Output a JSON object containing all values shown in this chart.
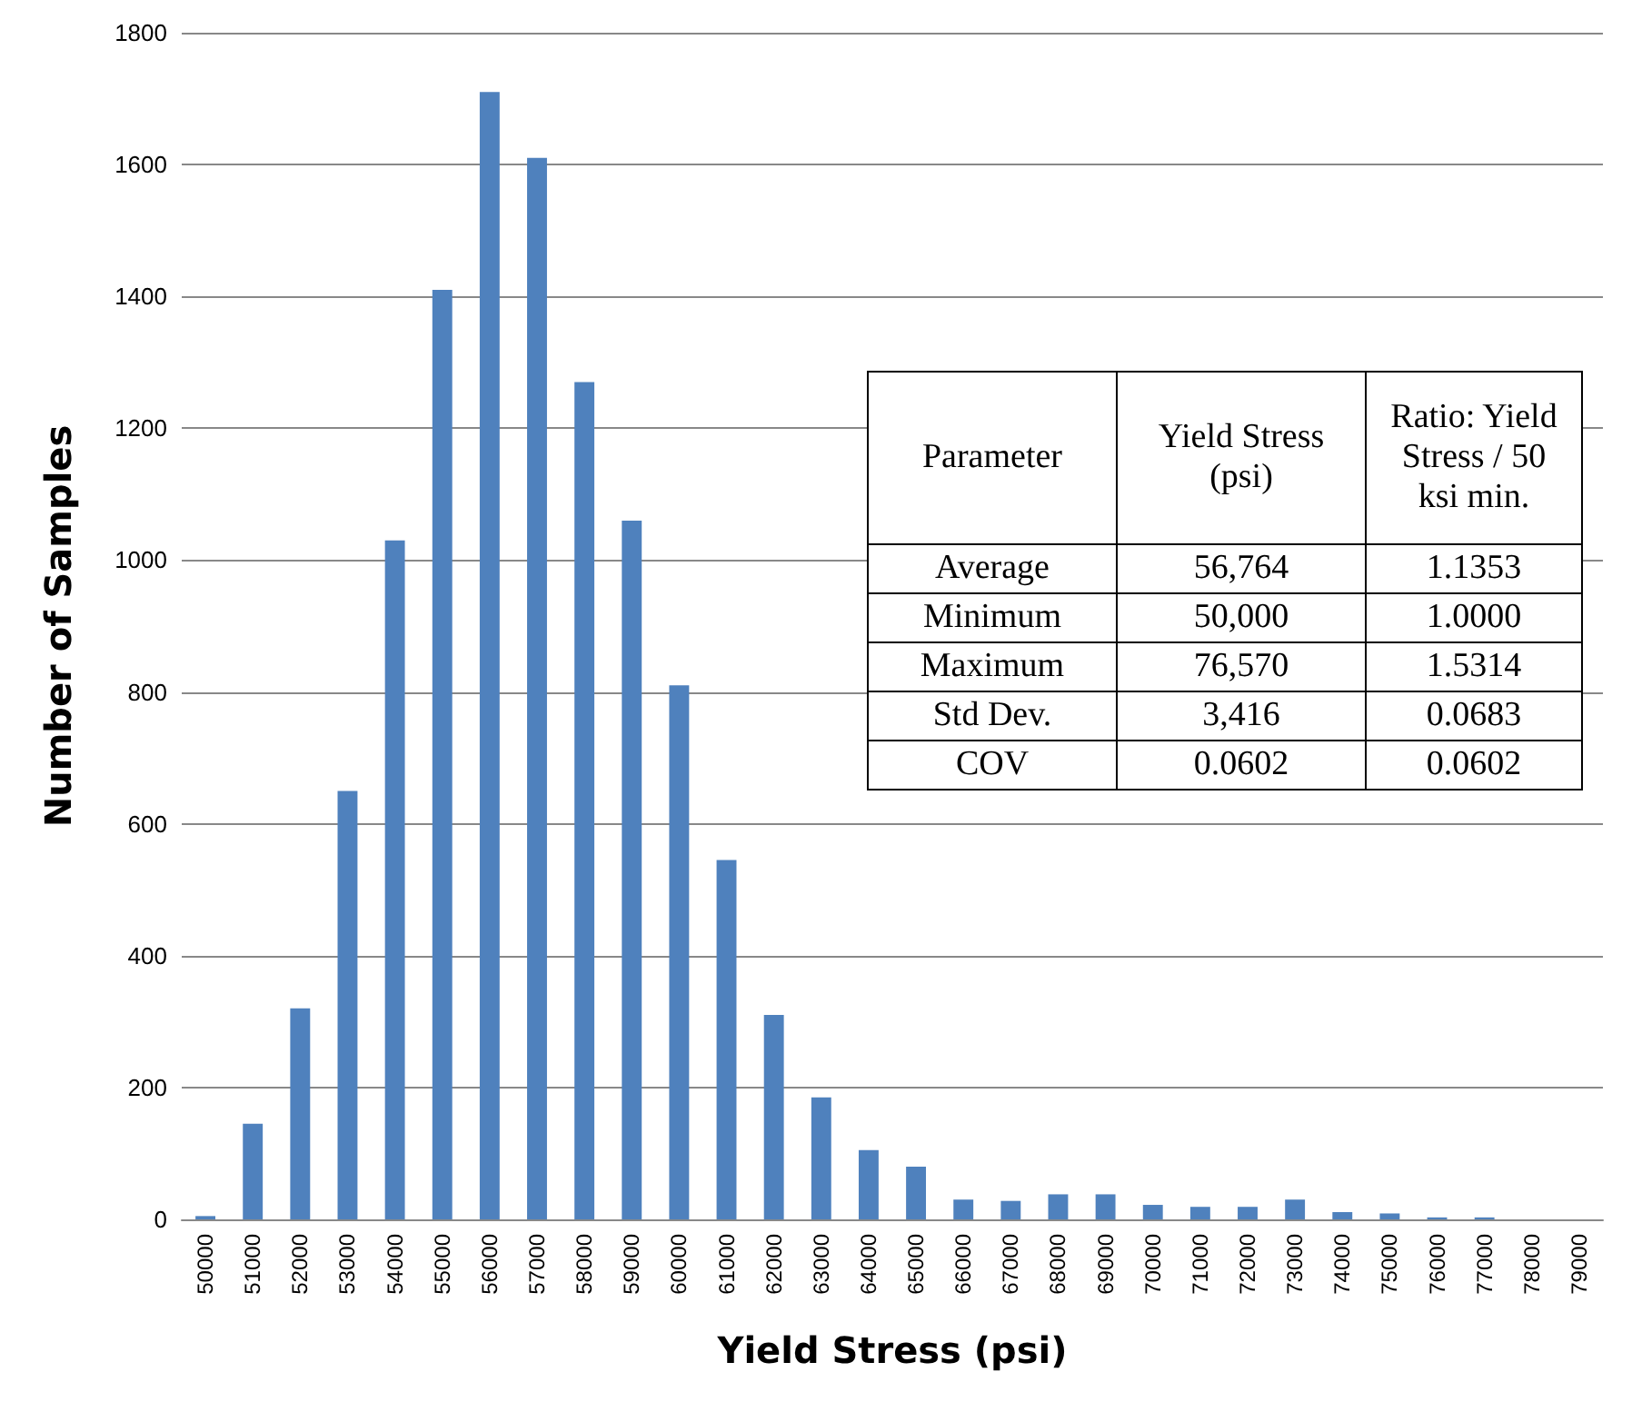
{
  "chart_data": {
    "type": "bar",
    "xlabel": "Yield Stress (psi)",
    "ylabel": "Number of Samples",
    "categories": [
      "50000",
      "51000",
      "52000",
      "53000",
      "54000",
      "55000",
      "56000",
      "57000",
      "58000",
      "59000",
      "60000",
      "61000",
      "62000",
      "63000",
      "64000",
      "65000",
      "66000",
      "67000",
      "68000",
      "69000",
      "70000",
      "71000",
      "72000",
      "73000",
      "74000",
      "75000",
      "76000",
      "77000",
      "78000",
      "79000"
    ],
    "values": [
      5,
      145,
      320,
      650,
      1030,
      1410,
      1710,
      1610,
      1270,
      1060,
      810,
      545,
      310,
      185,
      105,
      80,
      30,
      28,
      38,
      38,
      22,
      19,
      19,
      30,
      11,
      9,
      3,
      3,
      0,
      0
    ],
    "color": "#4f81bd",
    "ylim": [
      0,
      1800
    ],
    "yticks": [
      0,
      200,
      400,
      600,
      800,
      1000,
      1200,
      1400,
      1600,
      1800
    ],
    "grid": "y",
    "annotations": [
      "Parameter",
      "Yield Stress (psi)",
      "Ratio: Yield Stress / 50 ksi min.",
      "Average",
      "56,764",
      "1.1353",
      "Minimum",
      "50,000",
      "1.0000",
      "Maximum",
      "76,570",
      "1.5314",
      "Std Dev.",
      "3,416",
      "0.0683",
      "COV",
      "0.0602",
      "0.0602"
    ]
  }
}
